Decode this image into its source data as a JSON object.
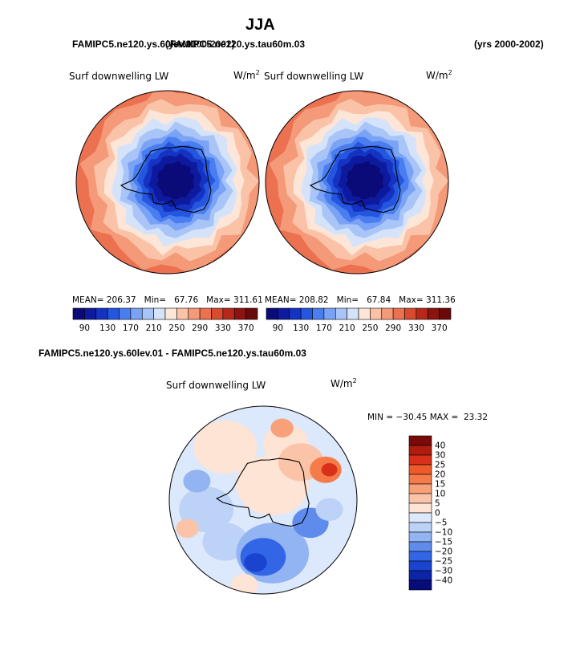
{
  "figure": {
    "title": "JJA",
    "subtitle_left_a": "FAMIPC5.ne120.ys.60lev.01",
    "subtitle_left_b": "FAMIPC5.ne120.ys.tau60m.03",
    "subtitle_left_b_years": "(yrs 2000-2002)",
    "subtitle_right": "(yrs 2000-2002)",
    "diff_title": "FAMIPC5.ne120.ys.60lev.01 - FAMIPC5.ne120.ys.tau60m.03"
  },
  "panels": [
    {
      "variable": "Surf downwelling LW",
      "units_base": "W/m",
      "units_exp": "2",
      "mean_label": "MEAN=",
      "mean_value": "206.37",
      "min_label": "Min=",
      "min_value": "67.76",
      "max_label": "Max=",
      "max_value": "311.61"
    },
    {
      "variable": "Surf downwelling LW",
      "units_base": "W/m",
      "units_exp": "2",
      "mean_label": "MEAN=",
      "mean_value": "208.82",
      "min_label": "Min=",
      "min_value": "67.84",
      "max_label": "Max=",
      "max_value": "311.36"
    }
  ],
  "diff_panel": {
    "variable": "Surf downwelling LW",
    "units_base": "W/m",
    "units_exp": "2",
    "min_label": "MIN =",
    "min_value": "−30.45",
    "max_label": "MAX =",
    "max_value": "23.32"
  },
  "colorbar_abs": {
    "tick_labels": [
      "90",
      "130",
      "170",
      "210",
      "250",
      "290",
      "330",
      "370"
    ],
    "colors": [
      "#0a0a78",
      "#0d1a9e",
      "#1533c2",
      "#2456e0",
      "#4a7ef0",
      "#7ba3f5",
      "#a9c4f7",
      "#d5e3fa",
      "#fde6d8",
      "#fac3a8",
      "#f59a78",
      "#ec7150",
      "#d94a2e",
      "#b8281a",
      "#8c1410",
      "#6a0a0a"
    ]
  },
  "colorbar_diff": {
    "labels": [
      "40",
      "30",
      "25",
      "20",
      "15",
      "10",
      "5",
      "0",
      "−5",
      "−10",
      "−15",
      "−20",
      "−25",
      "−30",
      "−40"
    ],
    "colors": [
      "#7a0a0a",
      "#b01c10",
      "#d9301a",
      "#f05a2a",
      "#f57c4a",
      "#f8a07a",
      "#fbc4a8",
      "#fde4d4",
      "#dce8fb",
      "#bcd2f7",
      "#93b4f2",
      "#5f8cec",
      "#3266e6",
      "#1a44d0",
      "#0c24a8",
      "#080c78"
    ]
  },
  "chart_data": [
    {
      "type": "heatmap",
      "projection": "south polar stereographic",
      "variable": "Surf downwelling LW",
      "units": "W/m2",
      "mean": 206.37,
      "min": 67.76,
      "max": 311.61,
      "contour_levels": [
        90,
        130,
        170,
        210,
        250,
        290,
        330,
        370
      ]
    },
    {
      "type": "heatmap",
      "projection": "south polar stereographic",
      "variable": "Surf downwelling LW",
      "units": "W/m2",
      "mean": 208.82,
      "min": 67.84,
      "max": 311.36,
      "contour_levels": [
        90,
        130,
        170,
        210,
        250,
        290,
        330,
        370
      ]
    },
    {
      "type": "heatmap",
      "projection": "south polar stereographic",
      "variable": "Surf downwelling LW",
      "units": "W/m2",
      "min": -30.45,
      "max": 23.32,
      "contour_levels": [
        -40,
        -30,
        -25,
        -20,
        -15,
        -10,
        -5,
        0,
        5,
        10,
        15,
        20,
        25,
        30,
        40
      ]
    }
  ]
}
